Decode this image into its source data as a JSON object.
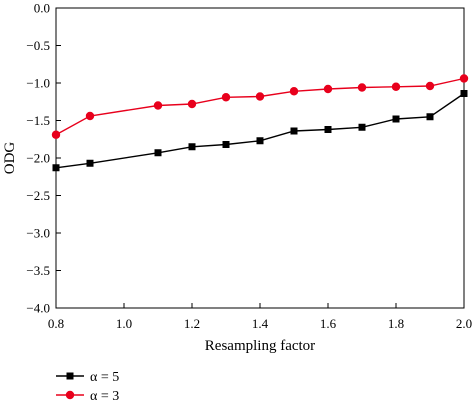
{
  "chart_data": {
    "type": "line",
    "xlabel": "Resampling factor",
    "ylabel": "ODG",
    "xlim": [
      0.8,
      2.0
    ],
    "ylim": [
      -4.0,
      0.0
    ],
    "xticks": [
      0.8,
      1.0,
      1.2,
      1.4,
      1.6,
      1.8,
      2.0
    ],
    "xtick_labels": [
      "0.8",
      "1.0",
      "1.2",
      "1.4",
      "1.6",
      "1.8",
      "2.0"
    ],
    "yticks": [
      0.0,
      -0.5,
      -1.0,
      -1.5,
      -2.0,
      -2.5,
      -3.0,
      -3.5,
      -4.0
    ],
    "ytick_labels": [
      "0.0",
      "−0.5",
      "−1.0",
      "−1.5",
      "−2.0",
      "−2.5",
      "−3.0",
      "−3.5",
      "−4.0"
    ],
    "grid": false,
    "legend_position": "bottom-left, below plot",
    "series": [
      {
        "name": "α = 5",
        "color": "#000000",
        "marker": "square",
        "x": [
          0.8,
          0.9,
          1.1,
          1.2,
          1.3,
          1.4,
          1.5,
          1.6,
          1.7,
          1.8,
          1.9,
          2.0
        ],
        "y": [
          -2.13,
          -2.07,
          -1.93,
          -1.85,
          -1.82,
          -1.77,
          -1.64,
          -1.62,
          -1.59,
          -1.48,
          -1.45,
          -1.14
        ]
      },
      {
        "name": "α = 3",
        "color": "#e8001c",
        "marker": "circle",
        "x": [
          0.8,
          0.9,
          1.1,
          1.2,
          1.3,
          1.4,
          1.5,
          1.6,
          1.7,
          1.8,
          1.9,
          2.0
        ],
        "y": [
          -1.69,
          -1.44,
          -1.3,
          -1.28,
          -1.19,
          -1.18,
          -1.11,
          -1.08,
          -1.06,
          -1.05,
          -1.04,
          -0.94
        ]
      }
    ]
  }
}
